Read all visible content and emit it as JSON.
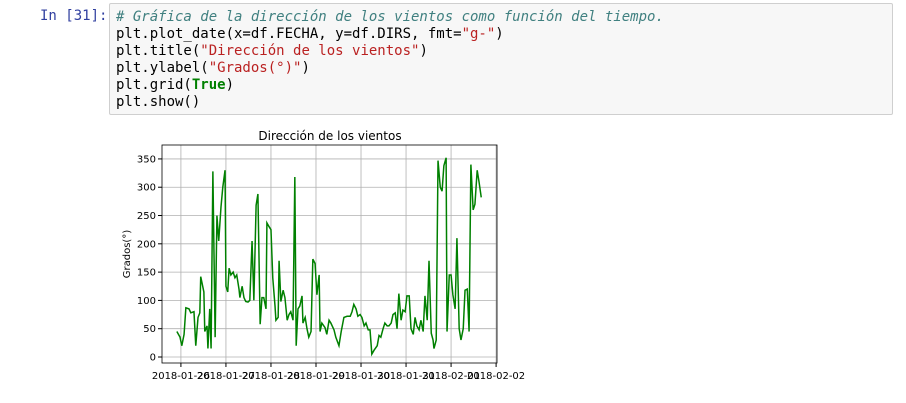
{
  "prompt": "In [31]:",
  "code": {
    "lines": [
      [
        "# Gráfica de la dirección de los vientos como función del tiempo."
      ],
      [
        "plt.plot_date(x=df.FECHA, y=df.DIRS, fmt=",
        "\"g-\"",
        ")"
      ],
      [
        "plt.title(",
        "\"Dirección de los vientos\"",
        ")"
      ],
      [
        "plt.ylabel(",
        "\"Grados(°)\"",
        ")"
      ],
      [
        "plt.grid(",
        "True",
        ")"
      ],
      [
        "plt.show()"
      ]
    ]
  },
  "chart_data": {
    "type": "line",
    "title": "Dirección de los vientos",
    "ylabel": "Grados(°)",
    "grid": true,
    "xlim": [
      -0.42,
      7.02
    ],
    "ylim": [
      -10.6,
      374.6
    ],
    "xticks": [
      {
        "value": 0,
        "label": "2018-01-26"
      },
      {
        "value": 1,
        "label": "2018-01-27"
      },
      {
        "value": 2,
        "label": "2018-01-28"
      },
      {
        "value": 3,
        "label": "2018-01-29"
      },
      {
        "value": 4,
        "label": "2018-01-30"
      },
      {
        "value": 5,
        "label": "2018-01-31"
      },
      {
        "value": 6,
        "label": "2018-02-01"
      },
      {
        "value": 7,
        "label": "2018-02-02"
      }
    ],
    "yticks": [
      0,
      50,
      100,
      150,
      200,
      250,
      300,
      350
    ],
    "series": [
      {
        "color": "#008000",
        "x": [
          -0.09,
          -0.02,
          0.02,
          0.07,
          0.11,
          0.18,
          0.22,
          0.29,
          0.33,
          0.38,
          0.42,
          0.44,
          0.51,
          0.53,
          0.58,
          0.6,
          0.64,
          0.67,
          0.71,
          0.76,
          0.8,
          0.84,
          0.89,
          0.93,
          0.98,
          1.0,
          1.04,
          1.07,
          1.11,
          1.16,
          1.2,
          1.24,
          1.29,
          1.31,
          1.36,
          1.4,
          1.44,
          1.49,
          1.53,
          1.58,
          1.62,
          1.67,
          1.71,
          1.76,
          1.8,
          1.84,
          1.89,
          1.91,
          1.96,
          2.0,
          2.04,
          2.09,
          2.11,
          2.16,
          2.18,
          2.22,
          2.27,
          2.31,
          2.36,
          2.4,
          2.44,
          2.49,
          2.53,
          2.56,
          2.6,
          2.64,
          2.69,
          2.71,
          2.76,
          2.8,
          2.84,
          2.89,
          2.93,
          2.98,
          3.02,
          3.07,
          3.09,
          3.13,
          3.2,
          3.24,
          3.29,
          3.33,
          3.4,
          3.44,
          3.51,
          3.56,
          3.62,
          3.69,
          3.76,
          3.8,
          3.84,
          3.89,
          3.93,
          3.98,
          4.02,
          4.07,
          4.11,
          4.16,
          4.2,
          4.24,
          4.29,
          4.36,
          4.4,
          4.44,
          4.49,
          4.53,
          4.58,
          4.62,
          4.67,
          4.71,
          4.76,
          4.8,
          4.84,
          4.89,
          4.93,
          4.98,
          5.02,
          5.07,
          5.11,
          5.16,
          5.2,
          5.24,
          5.29,
          5.33,
          5.38,
          5.42,
          5.47,
          5.51,
          5.56,
          5.6,
          5.62,
          5.67,
          5.71,
          5.76,
          5.8,
          5.84,
          5.89,
          5.91,
          5.96,
          6.0,
          6.04,
          6.09,
          6.13,
          6.18,
          6.22,
          6.27,
          6.31,
          6.36,
          6.4,
          6.44,
          6.49,
          6.53,
          6.58,
          6.62,
          6.67
        ],
        "values": [
          45,
          35,
          20,
          40,
          87,
          85,
          78,
          80,
          20,
          70,
          78,
          142,
          115,
          45,
          55,
          15,
          85,
          15,
          328,
          35,
          250,
          205,
          265,
          300,
          330,
          125,
          115,
          157,
          145,
          150,
          140,
          145,
          120,
          105,
          125,
          105,
          98,
          97,
          100,
          205,
          100,
          268,
          288,
          58,
          105,
          105,
          85,
          237,
          230,
          225,
          140,
          90,
          65,
          70,
          170,
          98,
          118,
          105,
          65,
          75,
          80,
          65,
          318,
          20,
          85,
          90,
          108,
          60,
          70,
          50,
          35,
          45,
          173,
          165,
          110,
          145,
          45,
          60,
          52,
          40,
          65,
          60,
          48,
          35,
          20,
          45,
          70,
          72,
          72,
          80,
          93,
          85,
          72,
          75,
          70,
          55,
          60,
          48,
          48,
          5,
          12,
          20,
          38,
          35,
          50,
          60,
          55,
          55,
          60,
          75,
          78,
          50,
          112,
          65,
          83,
          80,
          108,
          108,
          50,
          40,
          70,
          55,
          48,
          65,
          45,
          108,
          65,
          170,
          42,
          30,
          15,
          30,
          347,
          300,
          293,
          338,
          352,
          45,
          145,
          145,
          110,
          85,
          210,
          50,
          30,
          50,
          118,
          120,
          45,
          340,
          260,
          270,
          330,
          310,
          282
        ]
      }
    ]
  }
}
